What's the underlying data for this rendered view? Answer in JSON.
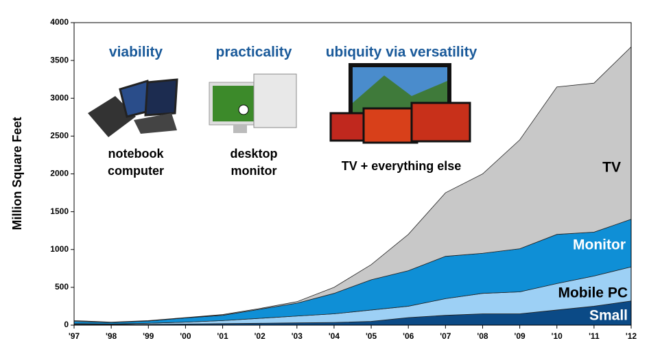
{
  "chart_data": {
    "type": "stacked-area",
    "y_label": "Million Square Feet",
    "categories": [
      "'97",
      "'98",
      "'99",
      "'00",
      "'01",
      "'02",
      "'03",
      "'04",
      "'05",
      "'06",
      "'07",
      "'08",
      "'09",
      "'10",
      "'11",
      "'12"
    ],
    "series": [
      {
        "name": "Small",
        "color": "#0b4a86",
        "values": [
          10,
          10,
          10,
          15,
          20,
          25,
          30,
          35,
          50,
          100,
          130,
          150,
          150,
          200,
          250,
          320
        ]
      },
      {
        "name": "Mobile PC",
        "color": "#9dd0f5",
        "values": [
          10,
          5,
          15,
          25,
          40,
          65,
          90,
          115,
          150,
          150,
          220,
          270,
          290,
          350,
          400,
          450
        ]
      },
      {
        "name": "Monitor",
        "color": "#0f8fd6",
        "values": [
          30,
          20,
          30,
          55,
          70,
          120,
          170,
          270,
          400,
          470,
          560,
          530,
          570,
          650,
          580,
          630
        ]
      },
      {
        "name": "TV",
        "color": "#c8c8c8",
        "values": [
          10,
          5,
          5,
          5,
          10,
          10,
          20,
          80,
          200,
          480,
          840,
          1050,
          1440,
          1950,
          1970,
          2280
        ]
      }
    ],
    "ylim": [
      0,
      4000
    ],
    "yticks": [
      0,
      500,
      1000,
      1500,
      2000,
      2500,
      3000,
      3500,
      4000
    ],
    "annotations": [
      {
        "title": "viability",
        "caption": [
          "notebook",
          "computer"
        ]
      },
      {
        "title": "practicality",
        "caption": [
          "desktop",
          "monitor"
        ]
      },
      {
        "title": "ubiquity via versatility",
        "caption": [
          "TV  + everything else"
        ]
      }
    ]
  }
}
